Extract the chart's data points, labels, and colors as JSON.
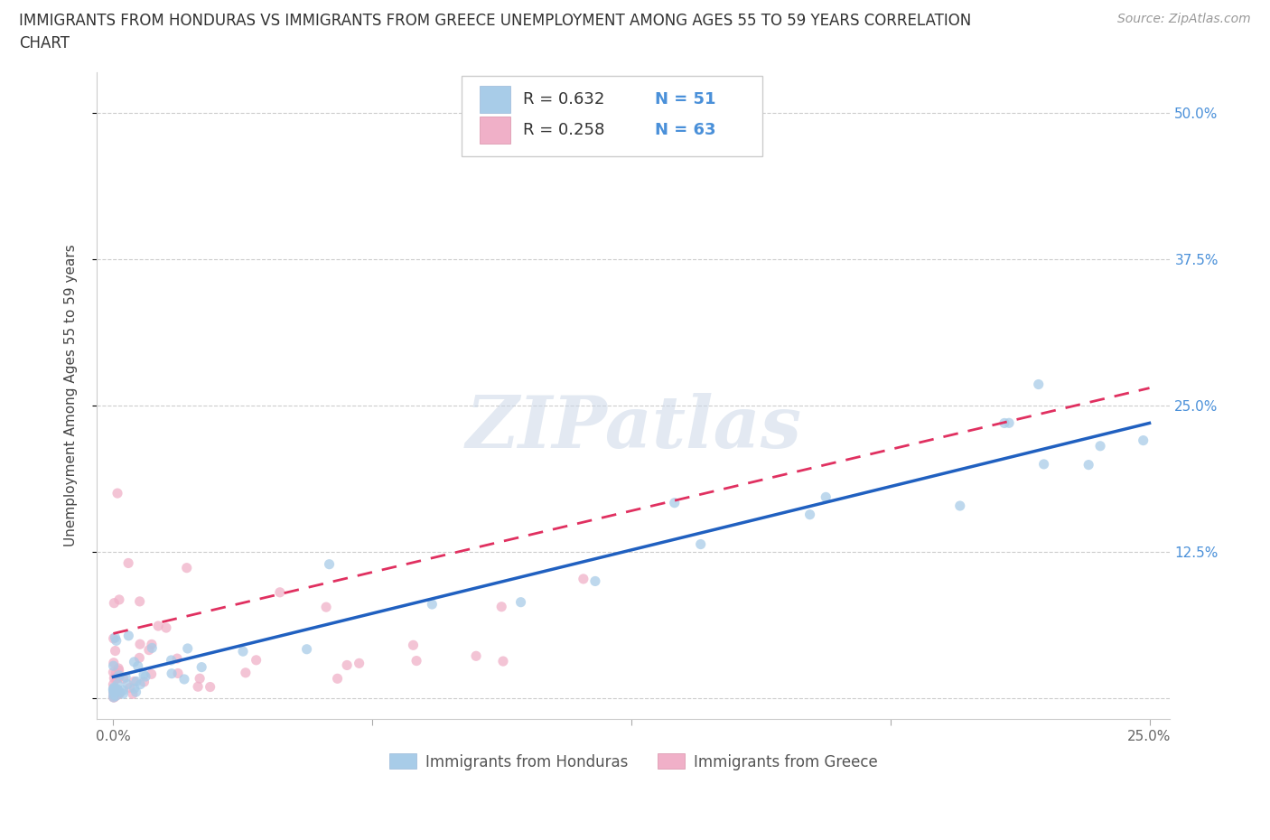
{
  "title_line1": "IMMIGRANTS FROM HONDURAS VS IMMIGRANTS FROM GREECE UNEMPLOYMENT AMONG AGES 55 TO 59 YEARS CORRELATION",
  "title_line2": "CHART",
  "source": "Source: ZipAtlas.com",
  "ylabel": "Unemployment Among Ages 55 to 59 years",
  "watermark": "ZIPatlas",
  "honduras_color": "#a8cce8",
  "greece_color": "#f0b0c8",
  "honduras_line_color": "#2060c0",
  "greece_line_color": "#e03060",
  "grid_color": "#cccccc",
  "bg_color": "#ffffff",
  "right_tick_color": "#4a90d9",
  "left_tick_color": "#888888",
  "ytick_positions": [
    0.0,
    0.125,
    0.25,
    0.375,
    0.5
  ],
  "ytick_labels_right": [
    "",
    "12.5%",
    "25.0%",
    "37.5%",
    "50.0%"
  ],
  "xtick_positions": [
    0.0,
    0.0625,
    0.125,
    0.1875,
    0.25
  ],
  "xtick_labels": [
    "0.0%",
    "",
    "",
    "",
    "25.0%"
  ],
  "legend_r1": "R = 0.632",
  "legend_n1": "N = 51",
  "legend_r2": "R = 0.258",
  "legend_n2": "N = 63",
  "bottom_legend_1": "Immigrants from Honduras",
  "bottom_legend_2": "Immigrants from Greece"
}
